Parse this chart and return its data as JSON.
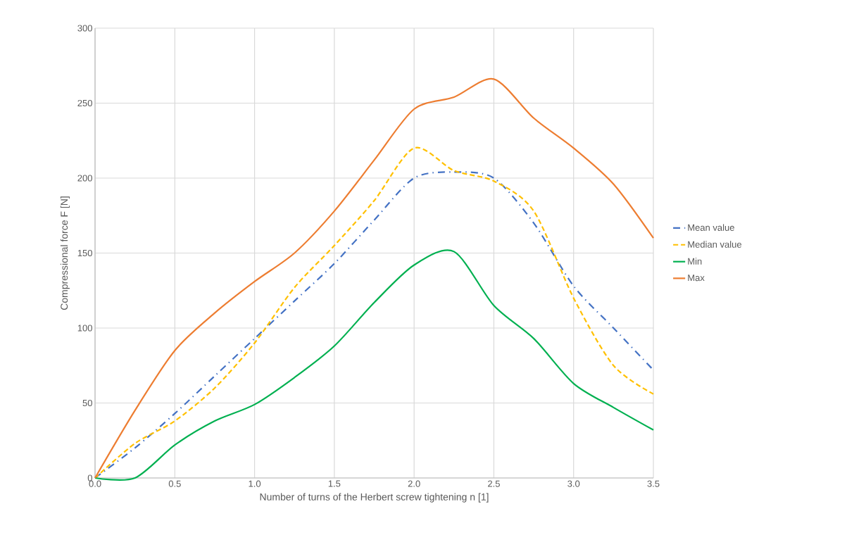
{
  "chart_data": {
    "type": "line",
    "xlabel": "Number of turns of the Herbert screw tightening n [1]",
    "ylabel": "Compressional force F [N]",
    "x": [
      0,
      0.25,
      0.5,
      0.75,
      1.0,
      1.25,
      1.5,
      1.75,
      2.0,
      2.25,
      2.5,
      2.75,
      3.0,
      3.25,
      3.5
    ],
    "series": [
      {
        "name": "Mean value",
        "color": "#4472c4",
        "line_style": "dashdot",
        "values": [
          0,
          20,
          43,
          68,
          93,
          118,
          143,
          172,
          200,
          204,
          200,
          170,
          128,
          100,
          72
        ]
      },
      {
        "name": "Median value",
        "color": "#ffc000",
        "line_style": "dashed",
        "values": [
          0,
          23,
          38,
          60,
          90,
          127,
          155,
          185,
          220,
          205,
          198,
          178,
          120,
          75,
          56
        ]
      },
      {
        "name": "Min",
        "color": "#00b050",
        "line_style": "solid",
        "values": [
          0,
          0,
          22,
          38,
          49,
          67,
          88,
          117,
          142,
          151,
          115,
          93,
          63,
          47,
          32
        ]
      },
      {
        "name": "Max",
        "color": "#ed7d31",
        "line_style": "solid",
        "values": [
          0,
          45,
          85,
          110,
          131,
          150,
          178,
          212,
          246,
          254,
          266,
          240,
          220,
          196,
          160
        ]
      }
    ],
    "xlim": [
      0,
      3.5
    ],
    "ylim": [
      0,
      300
    ],
    "xticks": [
      {
        "value": 0,
        "label": "0.0"
      },
      {
        "value": 0.5,
        "label": "0.5"
      },
      {
        "value": 1,
        "label": "1.0"
      },
      {
        "value": 1.5,
        "label": "1.5"
      },
      {
        "value": 2,
        "label": "2.0"
      },
      {
        "value": 2.5,
        "label": "2.5"
      },
      {
        "value": 3,
        "label": "3.0"
      },
      {
        "value": 3.5,
        "label": "3.5"
      }
    ],
    "yticks": [
      0,
      50,
      100,
      150,
      200,
      250,
      300
    ],
    "grid": true,
    "legend": "right",
    "marker": "none"
  }
}
